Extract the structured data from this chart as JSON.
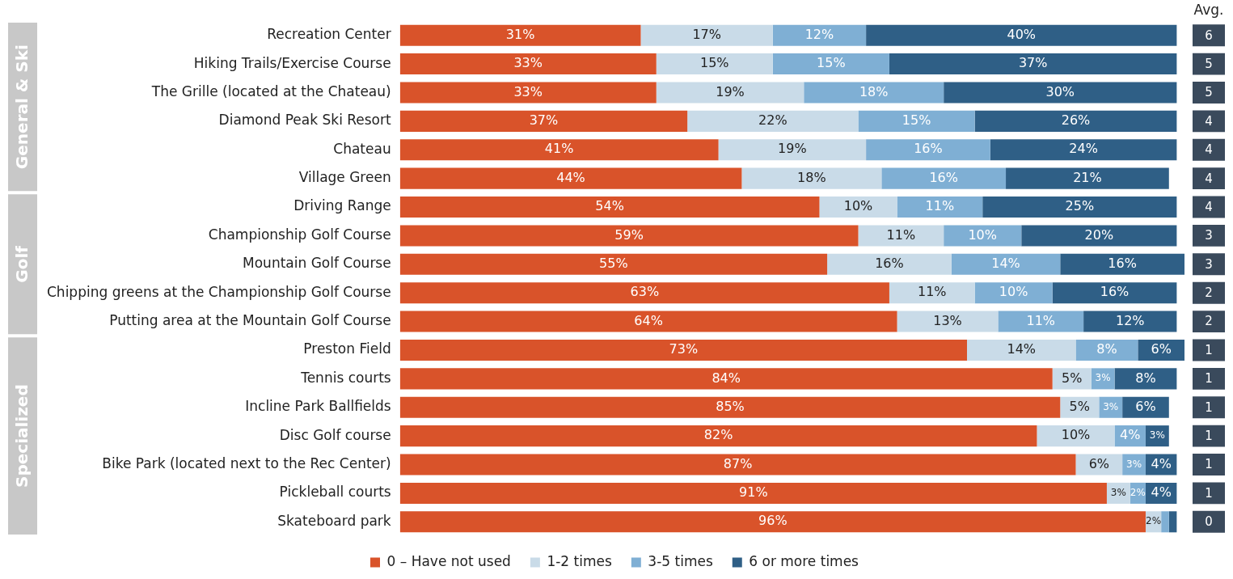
{
  "chart_data": {
    "type": "bar",
    "orientation": "horizontal",
    "stacked": true,
    "categories": [
      "Recreation Center",
      "Hiking Trails/Exercise Course",
      "The Grille (located at the Chateau)",
      "Diamond Peak Ski Resort",
      "Chateau",
      "Village Green",
      "Driving Range",
      "Championship Golf Course",
      "Mountain Golf Course",
      "Chipping greens at the Championship Golf Course",
      "Putting area at the Mountain Golf Course",
      "Preston Field",
      "Tennis courts",
      "Incline Park Ballfields",
      "Disc Golf course",
      "Bike Park (located next to the Rec Center)",
      "Pickleball courts",
      "Skateboard park"
    ],
    "series": [
      {
        "name": "0 – Have not used",
        "color": "#d9532a",
        "values": [
          31,
          33,
          33,
          37,
          41,
          44,
          54,
          59,
          55,
          63,
          64,
          73,
          84,
          85,
          82,
          87,
          91,
          96
        ],
        "value_labels": [
          "31%",
          "33%",
          "33%",
          "37%",
          "41%",
          "44%",
          "54%",
          "59%",
          "55%",
          "63%",
          "64%",
          "73%",
          "84%",
          "85%",
          "82%",
          "87%",
          "91%",
          "96%"
        ]
      },
      {
        "name": "1-2 times",
        "color": "#c9dbe8",
        "values": [
          17,
          15,
          19,
          22,
          19,
          18,
          10,
          11,
          16,
          11,
          13,
          14,
          5,
          5,
          10,
          6,
          3,
          2
        ],
        "value_labels": [
          "17%",
          "15%",
          "19%",
          "22%",
          "19%",
          "18%",
          "10%",
          "11%",
          "16%",
          "11%",
          "13%",
          "14%",
          "5%",
          "5%",
          "10%",
          "6%",
          "3%",
          "2%"
        ]
      },
      {
        "name": "3-5 times",
        "color": "#7fafd4",
        "values": [
          12,
          15,
          18,
          15,
          16,
          16,
          11,
          10,
          14,
          10,
          11,
          8,
          3,
          3,
          4,
          3,
          2,
          1
        ],
        "value_labels": [
          "12%",
          "15%",
          "18%",
          "15%",
          "16%",
          "16%",
          "11%",
          "10%",
          "14%",
          "10%",
          "11%",
          "8%",
          "3%",
          "3%",
          "4%",
          "3%",
          "2%",
          null
        ]
      },
      {
        "name": "6 or more times",
        "color": "#2f5f86",
        "values": [
          40,
          37,
          30,
          26,
          24,
          21,
          25,
          20,
          16,
          16,
          12,
          6,
          8,
          6,
          3,
          4,
          4,
          1
        ],
        "value_labels": [
          "40%",
          "37%",
          "30%",
          "26%",
          "24%",
          "21%",
          "25%",
          "20%",
          "16%",
          "16%",
          "12%",
          "6%",
          "8%",
          "6%",
          "3%",
          "4%",
          "4%",
          null
        ]
      }
    ],
    "legend": "bottom",
    "annotations": [
      "General & Ski",
      "Golf",
      "Specialized",
      "Avg.",
      "6",
      "5",
      "5",
      "4",
      "4",
      "4",
      "4",
      "3",
      "3",
      "2",
      "2",
      "1",
      "1",
      "1",
      "1",
      "1",
      "1",
      "0"
    ]
  }
}
